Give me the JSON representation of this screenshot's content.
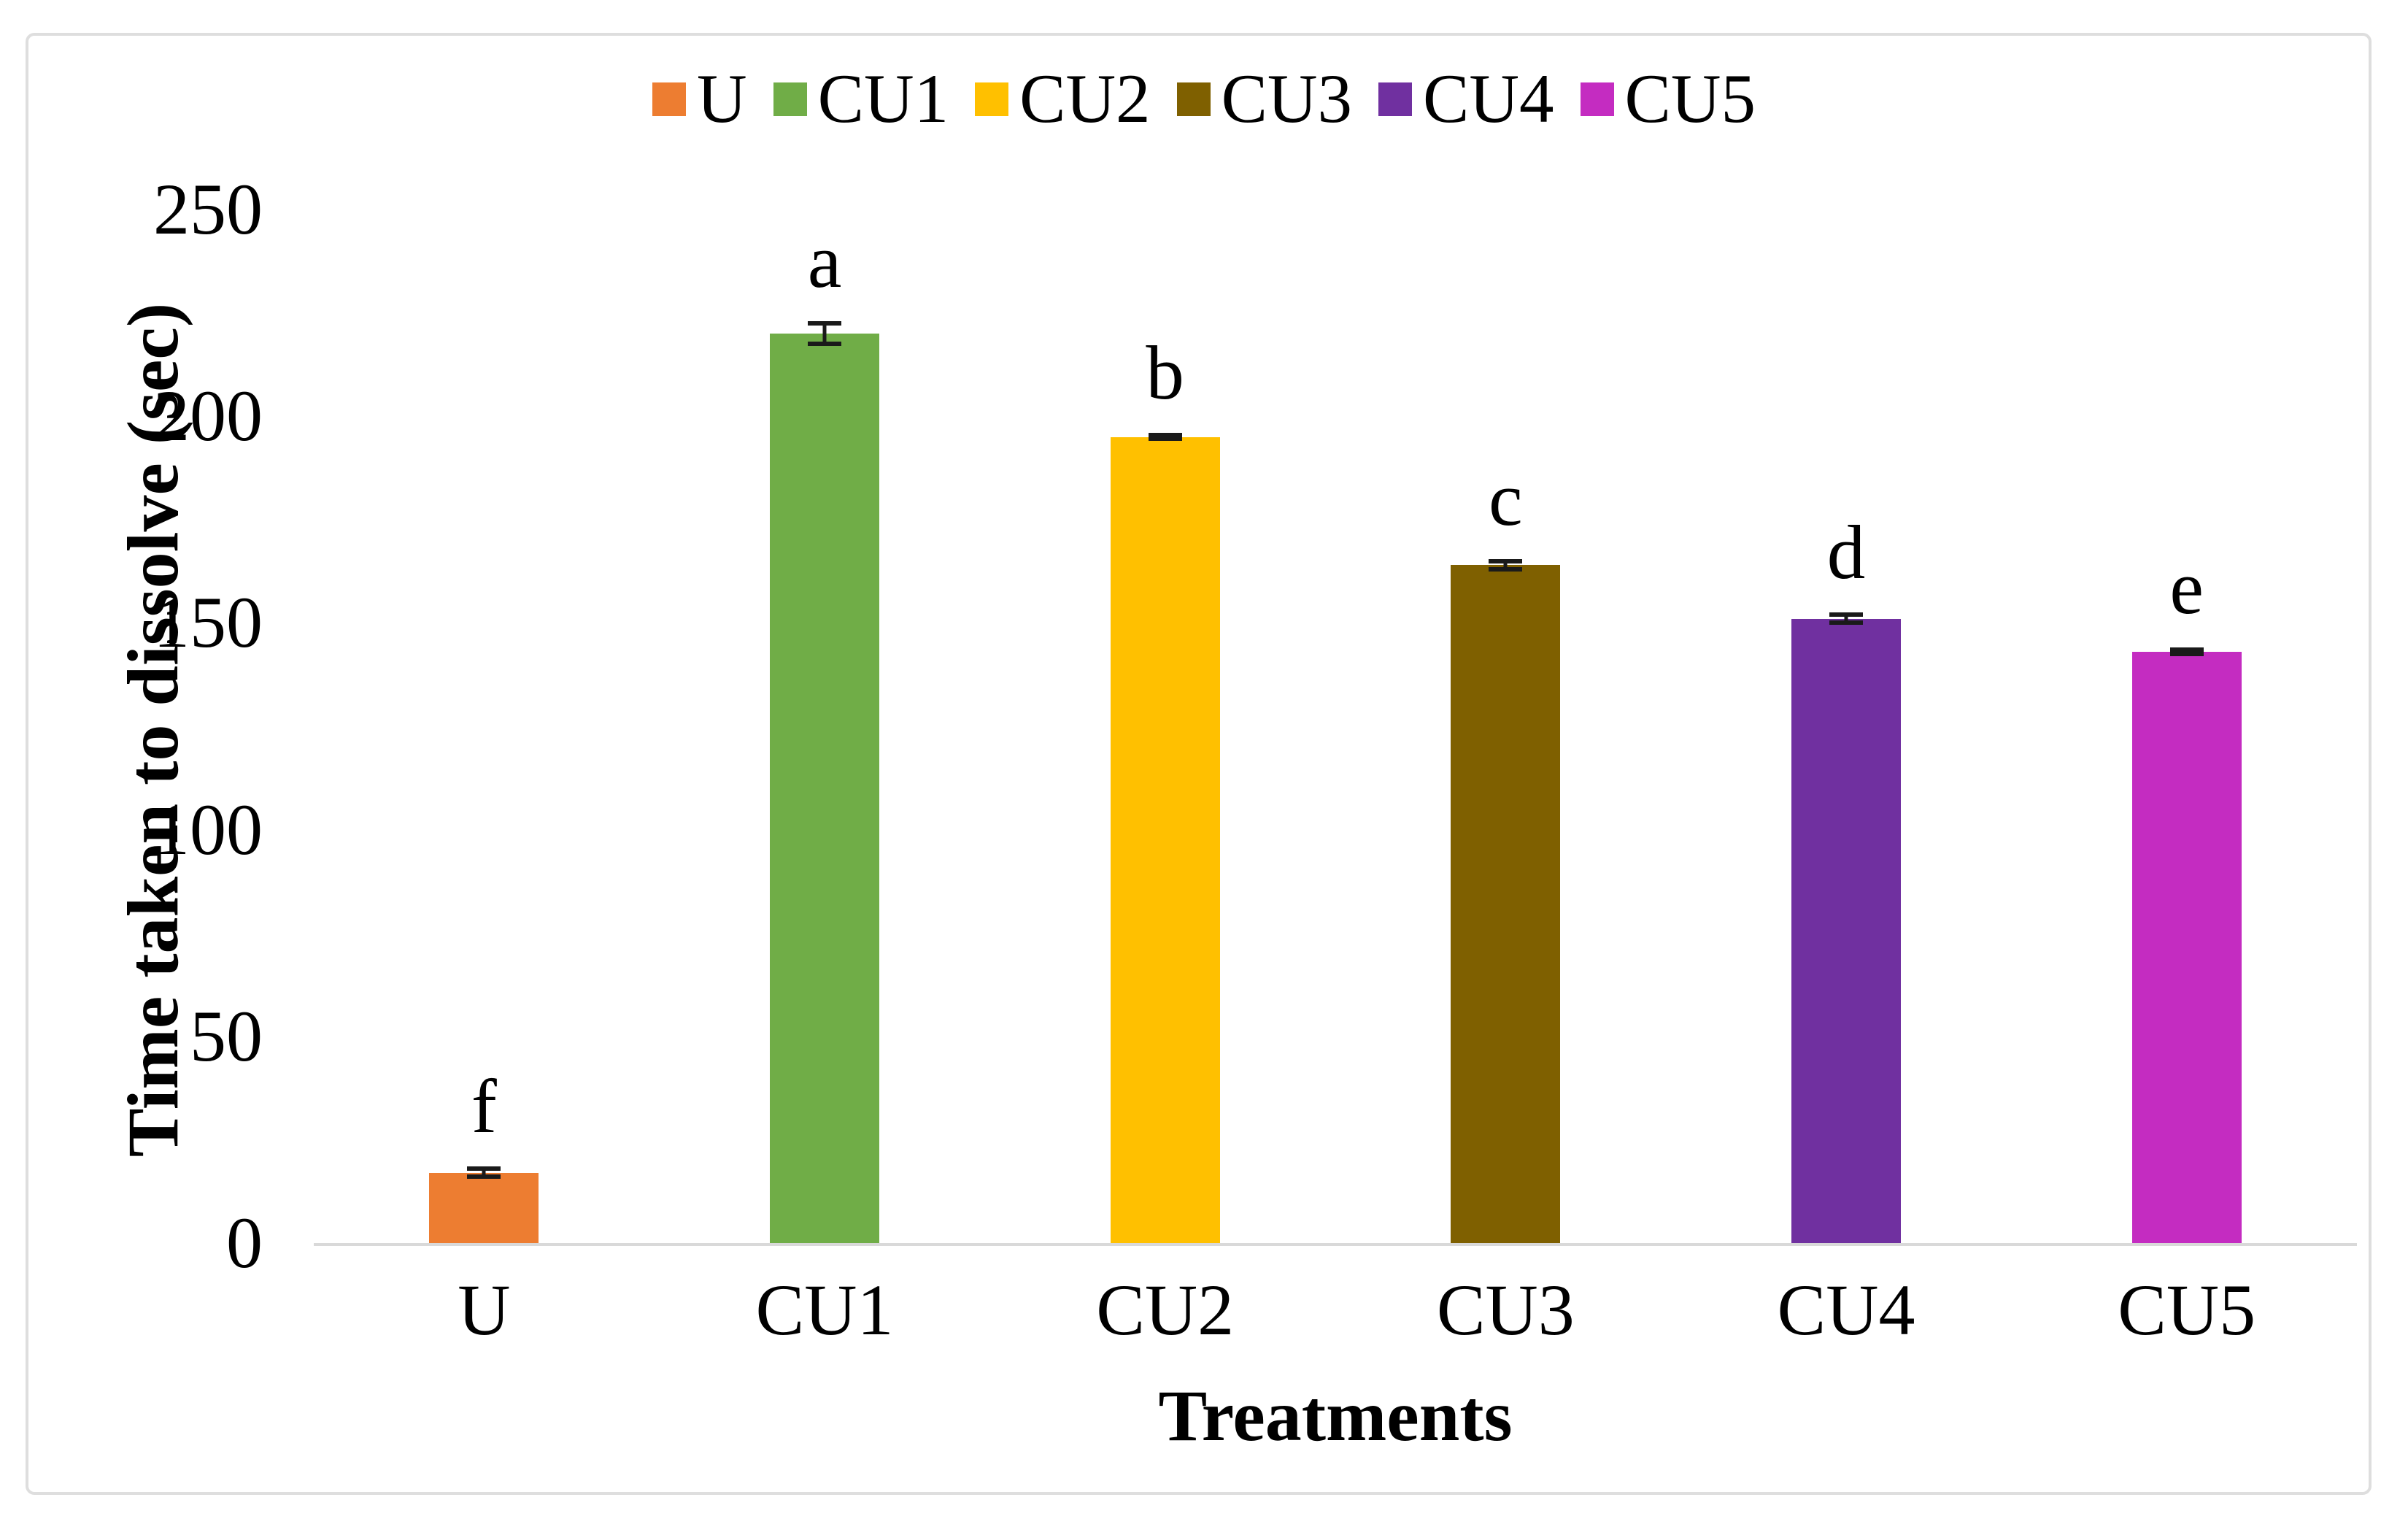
{
  "figure": {
    "background_color": "#ffffff",
    "frame_border_color": "#dedede",
    "axis_line_color": "#d9d9d9",
    "error_bar_color": "#1a1a1a"
  },
  "legend": {
    "position": "top-center",
    "items": [
      {
        "label": "U",
        "color": "#ED7D31"
      },
      {
        "label": "CU1",
        "color": "#70AD47"
      },
      {
        "label": "CU2",
        "color": "#FFC000"
      },
      {
        "label": "CU3",
        "color": "#7F6000"
      },
      {
        "label": "CU4",
        "color": "#7030A0"
      },
      {
        "label": "CU5",
        "color": "#C42CC1"
      }
    ]
  },
  "chart_data": {
    "type": "bar",
    "title": "",
    "xlabel": "Treatments",
    "ylabel": "Time taken to dissolve (sec)",
    "categories": [
      "U",
      "CU1",
      "CU2",
      "CU3",
      "CU4",
      "CU5"
    ],
    "values": [
      17,
      220,
      195,
      164,
      151,
      143
    ],
    "error_bars": [
      1.5,
      3,
      1,
      1.5,
      1.5,
      1
    ],
    "significance_letters": [
      "f",
      "a",
      "b",
      "c",
      "d",
      "e"
    ],
    "colors": [
      "#ED7D31",
      "#70AD47",
      "#FFC000",
      "#7F6000",
      "#7030A0",
      "#C42CC1"
    ],
    "ylim": [
      0,
      250
    ],
    "yticks": [
      0,
      50,
      100,
      150,
      200,
      250
    ],
    "grid": false,
    "legend_position": "top"
  }
}
